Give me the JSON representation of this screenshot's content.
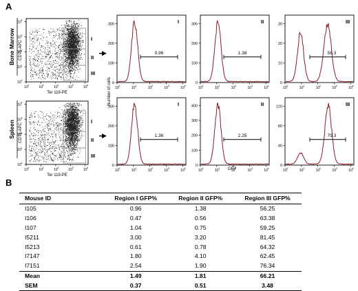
{
  "panel_labels": {
    "a": "A",
    "b": "B"
  },
  "flow": {
    "rows": [
      {
        "tissue": "Bone Marrow",
        "scatter": {
          "x_label": "Ter 119-PE",
          "y_label": "CD71-APC",
          "regions": [
            "I",
            "II",
            "III"
          ]
        },
        "histograms": [
          {
            "region": "I",
            "percent": "0.96",
            "y_ticks": [
              "0",
              "100",
              "200",
              "300"
            ]
          },
          {
            "region": "II",
            "percent": "1.38",
            "y_ticks": [
              "0",
              "100",
              "200",
              "300"
            ]
          },
          {
            "region": "III",
            "percent": "56.3",
            "y_ticks": [
              "0",
              "10",
              "20",
              "30"
            ]
          }
        ]
      },
      {
        "tissue": "Spleen",
        "scatter": {
          "x_label": "Ter 119-PE",
          "y_label": "CD71-APC",
          "regions": [
            "I",
            "II",
            "III"
          ]
        },
        "histograms": [
          {
            "region": "I",
            "percent": "1.36",
            "y_ticks": [
              "0",
              "100",
              "200",
              "300"
            ]
          },
          {
            "region": "II",
            "percent": "2.25",
            "y_ticks": [
              "0",
              "100",
              "200",
              "300",
              "400"
            ]
          },
          {
            "region": "III",
            "percent": "79.3",
            "y_ticks": [
              "0",
              "40",
              "80",
              "120"
            ]
          }
        ]
      }
    ],
    "hist_y_label": "Number of cells",
    "hist_x_label": "GFP",
    "log_ticks": [
      "10",
      "10",
      "10",
      "10",
      "10"
    ],
    "log_exps": [
      "0",
      "1",
      "2",
      "3",
      "4"
    ],
    "colors": {
      "histogram_line": "#8b1a2b",
      "dots": "#222222",
      "gate": "#888888"
    }
  },
  "table": {
    "headers": [
      "Mouse ID",
      "Region I GFP%",
      "Region II GFP%",
      "Region III GFP%"
    ],
    "rows": [
      [
        "I105",
        "0.96",
        "1.38",
        "56.25"
      ],
      [
        "I106",
        "0.47",
        "0.56",
        "63.38"
      ],
      [
        "I107",
        "1.04",
        "0.75",
        "59.25"
      ],
      [
        "I5211",
        "3.00",
        "3.20",
        "81.45"
      ],
      [
        "I5213",
        "0.61",
        "0.78",
        "64.32"
      ],
      [
        "I7147",
        "1.80",
        "4.10",
        "62.45"
      ],
      [
        "I7151",
        "2.54",
        "1.90",
        "76.34"
      ]
    ],
    "summary": [
      [
        "Mean",
        "1.49",
        "1.81",
        "66.21"
      ],
      [
        "SEM",
        "0.37",
        "0.51",
        "3.48"
      ]
    ]
  }
}
